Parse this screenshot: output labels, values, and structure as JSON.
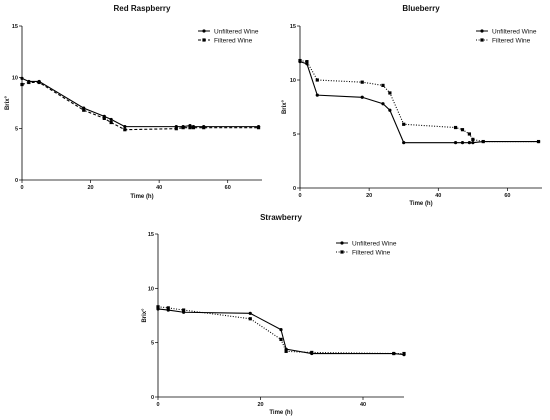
{
  "chart_data": [
    {
      "type": "line",
      "title": "Red Raspberry",
      "xlabel": "Time (h)",
      "ylabel": "Brix°",
      "xlim": [
        0,
        70
      ],
      "ylim": [
        0,
        15
      ],
      "xticks": [
        "0",
        "20",
        "40",
        "60"
      ],
      "yticks": [
        "0",
        "5",
        "10",
        "15"
      ],
      "legend": "top-right",
      "grid": false,
      "series": [
        {
          "name": "Unfiltered Wine",
          "style": "solid",
          "marker": "circle",
          "x": [
            0,
            2,
            5,
            18,
            24,
            26,
            30,
            45,
            47,
            49,
            50,
            53,
            69
          ],
          "y": [
            9.9,
            9.6,
            9.6,
            7.0,
            6.2,
            5.9,
            5.2,
            5.2,
            5.2,
            5.3,
            5.2,
            5.2,
            5.2
          ]
        },
        {
          "name": "Filtered Wine",
          "style": "dashed",
          "marker": "square",
          "x": [
            0,
            2,
            5,
            18,
            24,
            26,
            30,
            45,
            47,
            49,
            50,
            53,
            69
          ],
          "y": [
            9.3,
            9.5,
            9.5,
            6.8,
            6.0,
            5.6,
            4.9,
            5.0,
            5.1,
            5.1,
            5.1,
            5.1,
            5.1
          ]
        }
      ]
    },
    {
      "type": "line",
      "title": "Blueberry",
      "xlabel": "Time (h)",
      "ylabel": "Brix°",
      "xlim": [
        0,
        70
      ],
      "ylim": [
        0,
        15
      ],
      "xticks": [
        "0",
        "20",
        "40",
        "60"
      ],
      "yticks": [
        "0",
        "5",
        "10",
        "15"
      ],
      "legend": "top-right",
      "grid": false,
      "series": [
        {
          "name": "Unfiltered Wine",
          "style": "solid",
          "marker": "circle",
          "x": [
            0,
            2,
            5,
            18,
            24,
            26,
            30,
            45,
            47,
            49,
            50,
            53,
            69
          ],
          "y": [
            11.7,
            11.5,
            8.6,
            8.4,
            7.8,
            7.2,
            4.2,
            4.2,
            4.2,
            4.2,
            4.2,
            4.3,
            4.3
          ]
        },
        {
          "name": "Filtered Wine",
          "style": "dotted",
          "marker": "square",
          "x": [
            0,
            2,
            5,
            18,
            24,
            26,
            30,
            45,
            47,
            49,
            50,
            53,
            69
          ],
          "y": [
            11.8,
            11.7,
            10.0,
            9.8,
            9.5,
            8.8,
            5.9,
            5.6,
            5.4,
            5.0,
            4.5,
            4.3,
            4.3
          ]
        }
      ]
    },
    {
      "type": "line",
      "title": "Strawberry",
      "xlabel": "Time (h)",
      "ylabel": "Brix°",
      "xlim": [
        0,
        48
      ],
      "ylim": [
        0,
        15
      ],
      "xticks": [
        "0",
        "20",
        "40"
      ],
      "yticks": [
        "0",
        "5",
        "10",
        "15"
      ],
      "legend": "top-right",
      "grid": false,
      "series": [
        {
          "name": "Unfiltered Wine",
          "style": "solid",
          "marker": "circle",
          "x": [
            0,
            2,
            5,
            18,
            24,
            25,
            30,
            46,
            48
          ],
          "y": [
            8.1,
            8.0,
            7.8,
            7.7,
            6.2,
            4.4,
            4.0,
            4.0,
            3.9
          ]
        },
        {
          "name": "Filtered Wine",
          "style": "dotted",
          "marker": "square",
          "x": [
            0,
            2,
            5,
            18,
            24,
            25,
            30,
            46,
            48
          ],
          "y": [
            8.3,
            8.2,
            8.0,
            7.2,
            5.3,
            4.2,
            4.1,
            4.0,
            4.0
          ]
        }
      ]
    }
  ]
}
